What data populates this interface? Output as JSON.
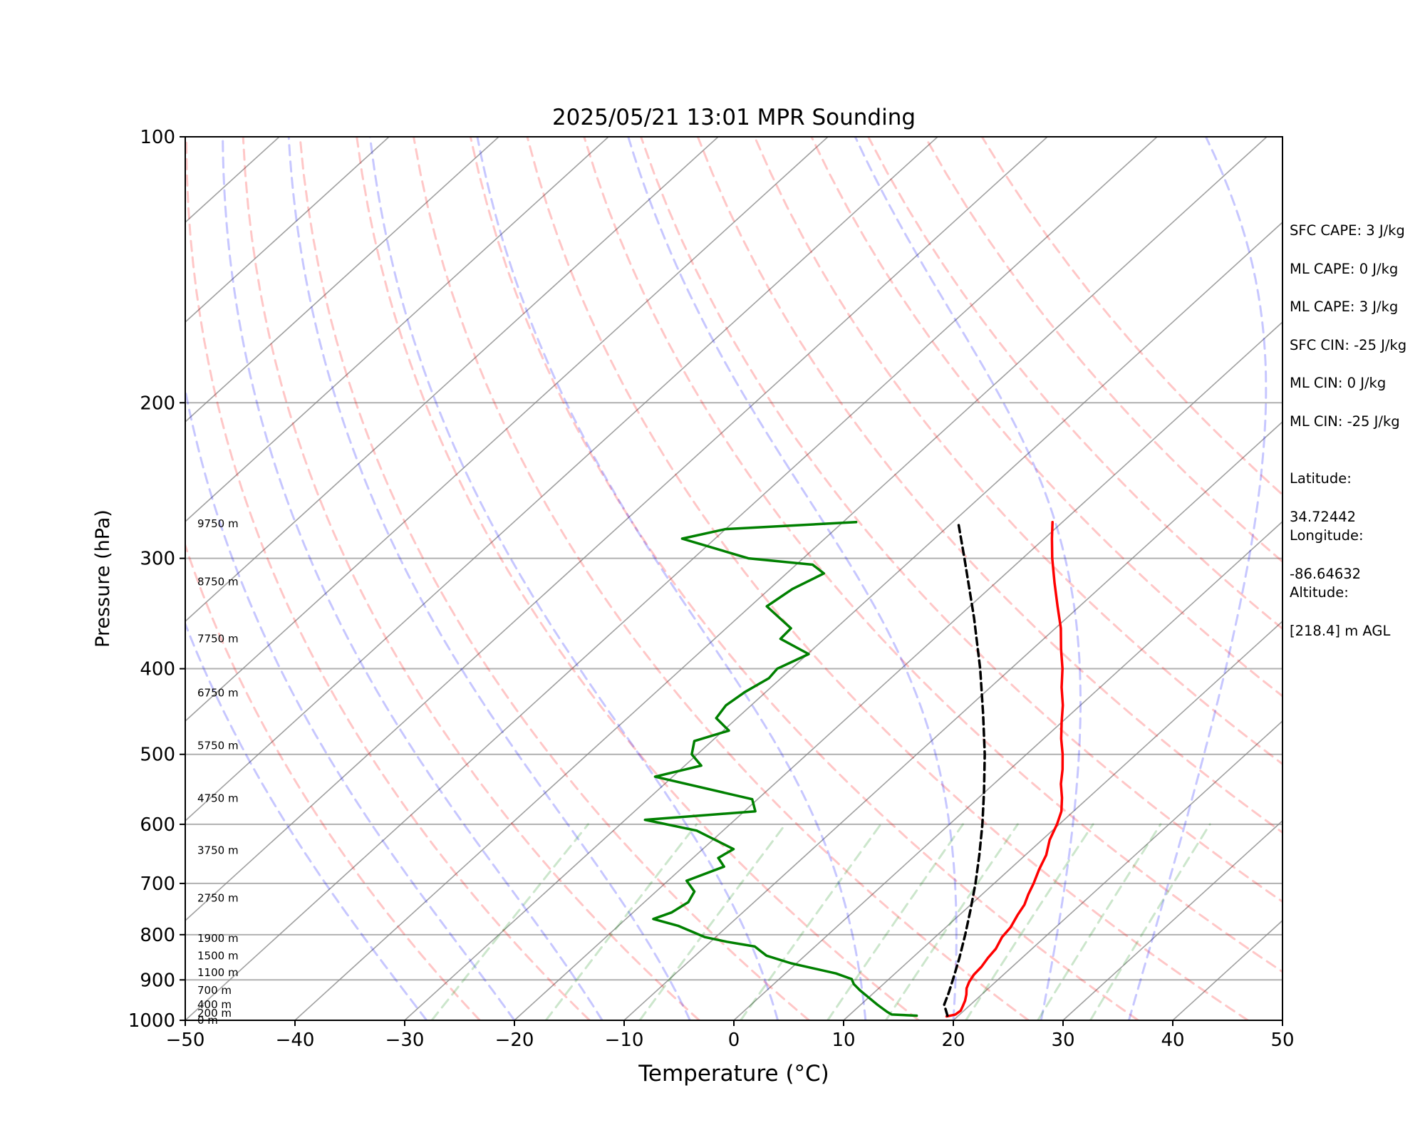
{
  "chart_data": {
    "type": "line",
    "subtype": "skew-t log-p",
    "title": "2025/05/21 13:01 MPR Sounding",
    "xlabel": "Temperature (°C)",
    "ylabel": "Pressure (hPa)",
    "xlim": [
      -50,
      50
    ],
    "ylim": [
      1000,
      100
    ],
    "y_scale": "log",
    "x_ticks": [
      -50,
      -40,
      -30,
      -20,
      -10,
      0,
      10,
      20,
      30,
      40,
      50
    ],
    "y_ticks": [
      100,
      200,
      300,
      400,
      500,
      600,
      700,
      800,
      900,
      1000
    ],
    "grid": "horizontal at pressure ticks",
    "height_labels": [
      {
        "p": 1000,
        "label": "0 m"
      },
      {
        "p": 982,
        "label": "200 m"
      },
      {
        "p": 960,
        "label": "400 m"
      },
      {
        "p": 925,
        "label": "700 m"
      },
      {
        "p": 883,
        "label": "1100 m"
      },
      {
        "p": 845,
        "label": "1500 m"
      },
      {
        "p": 808,
        "label": "1900 m"
      },
      {
        "p": 727,
        "label": "2750 m"
      },
      {
        "p": 642,
        "label": "3750 m"
      },
      {
        "p": 561,
        "label": "4750 m"
      },
      {
        "p": 489,
        "label": "5750 m"
      },
      {
        "p": 426,
        "label": "6750 m"
      },
      {
        "p": 370,
        "label": "7750 m"
      },
      {
        "p": 319,
        "label": "8750 m"
      },
      {
        "p": 274,
        "label": "9750 m"
      }
    ],
    "series": [
      {
        "color": "#ff0000",
        "points": [
          {
            "p": 990,
            "t": 19.0
          },
          {
            "p": 985,
            "t": 19.6
          },
          {
            "p": 975,
            "t": 19.7
          },
          {
            "p": 962,
            "t": 19.4
          },
          {
            "p": 950,
            "t": 19.1
          },
          {
            "p": 935,
            "t": 18.6
          },
          {
            "p": 920,
            "t": 18.0
          },
          {
            "p": 905,
            "t": 17.6
          },
          {
            "p": 888,
            "t": 17.3
          },
          {
            "p": 870,
            "t": 17.2
          },
          {
            "p": 850,
            "t": 16.9
          },
          {
            "p": 830,
            "t": 16.7
          },
          {
            "p": 805,
            "t": 16.1
          },
          {
            "p": 785,
            "t": 15.9
          },
          {
            "p": 760,
            "t": 15.3
          },
          {
            "p": 740,
            "t": 14.9
          },
          {
            "p": 720,
            "t": 14.2
          },
          {
            "p": 700,
            "t": 13.6
          },
          {
            "p": 675,
            "t": 12.7
          },
          {
            "p": 650,
            "t": 11.9
          },
          {
            "p": 625,
            "t": 10.7
          },
          {
            "p": 600,
            "t": 9.8
          },
          {
            "p": 580,
            "t": 8.9
          },
          {
            "p": 560,
            "t": 7.6
          },
          {
            "p": 540,
            "t": 6.1
          },
          {
            "p": 520,
            "t": 4.8
          },
          {
            "p": 500,
            "t": 3.3
          },
          {
            "p": 480,
            "t": 1.6
          },
          {
            "p": 460,
            "t": 0.0
          },
          {
            "p": 440,
            "t": -1.6
          },
          {
            "p": 420,
            "t": -3.5
          },
          {
            "p": 400,
            "t": -5.3
          },
          {
            "p": 380,
            "t": -7.4
          },
          {
            "p": 360,
            "t": -9.5
          },
          {
            "p": 340,
            "t": -12.0
          },
          {
            "p": 320,
            "t": -14.6
          },
          {
            "p": 300,
            "t": -17.3
          },
          {
            "p": 285,
            "t": -19.3
          },
          {
            "p": 273,
            "t": -20.9
          }
        ]
      },
      {
        "color": "#008000",
        "points": [
          {
            "p": 988,
            "t": 16.2
          },
          {
            "p": 985,
            "t": 13.8
          },
          {
            "p": 978,
            "t": 13.1
          },
          {
            "p": 960,
            "t": 11.5
          },
          {
            "p": 940,
            "t": 9.8
          },
          {
            "p": 925,
            "t": 8.5
          },
          {
            "p": 910,
            "t": 7.3
          },
          {
            "p": 898,
            "t": 6.6
          },
          {
            "p": 885,
            "t": 4.6
          },
          {
            "p": 862,
            "t": -0.5
          },
          {
            "p": 845,
            "t": -3.5
          },
          {
            "p": 835,
            "t": -4.5
          },
          {
            "p": 825,
            "t": -5.5
          },
          {
            "p": 815,
            "t": -8.5
          },
          {
            "p": 805,
            "t": -11.0
          },
          {
            "p": 795,
            "t": -12.5
          },
          {
            "p": 782,
            "t": -14.5
          },
          {
            "p": 768,
            "t": -17.5
          },
          {
            "p": 755,
            "t": -16.5
          },
          {
            "p": 735,
            "t": -16.0
          },
          {
            "p": 715,
            "t": -16.5
          },
          {
            "p": 695,
            "t": -18.3
          },
          {
            "p": 670,
            "t": -16.3
          },
          {
            "p": 655,
            "t": -17.7
          },
          {
            "p": 640,
            "t": -17.2
          },
          {
            "p": 610,
            "t": -22.4
          },
          {
            "p": 593,
            "t": -28.2
          },
          {
            "p": 580,
            "t": -19.0
          },
          {
            "p": 562,
            "t": -20.5
          },
          {
            "p": 530,
            "t": -31.6
          },
          {
            "p": 515,
            "t": -28.5
          },
          {
            "p": 500,
            "t": -30.5
          },
          {
            "p": 483,
            "t": -31.6
          },
          {
            "p": 470,
            "t": -29.5
          },
          {
            "p": 455,
            "t": -31.9
          },
          {
            "p": 440,
            "t": -32.3
          },
          {
            "p": 425,
            "t": -31.9
          },
          {
            "p": 410,
            "t": -31.1
          },
          {
            "p": 400,
            "t": -31.3
          },
          {
            "p": 385,
            "t": -29.9
          },
          {
            "p": 370,
            "t": -34.0
          },
          {
            "p": 360,
            "t": -34.1
          },
          {
            "p": 340,
            "t": -38.5
          },
          {
            "p": 325,
            "t": -37.9
          },
          {
            "p": 312,
            "t": -36.6
          },
          {
            "p": 305,
            "t": -38.5
          },
          {
            "p": 300,
            "t": -45.0
          },
          {
            "p": 285,
            "t": -53.0
          },
          {
            "p": 278,
            "t": -50.0
          },
          {
            "p": 273,
            "t": -38.8
          }
        ]
      },
      {
        "color": "#000000",
        "dashed": true,
        "points": [
          {
            "p": 988,
            "t": 19.0
          },
          {
            "p": 960,
            "t": 17.6
          },
          {
            "p": 930,
            "t": 16.8
          },
          {
            "p": 900,
            "t": 15.9
          },
          {
            "p": 850,
            "t": 14.3
          },
          {
            "p": 800,
            "t": 12.5
          },
          {
            "p": 750,
            "t": 10.5
          },
          {
            "p": 700,
            "t": 8.3
          },
          {
            "p": 650,
            "t": 5.8
          },
          {
            "p": 600,
            "t": 3.0
          },
          {
            "p": 550,
            "t": -0.2
          },
          {
            "p": 500,
            "t": -3.8
          },
          {
            "p": 450,
            "t": -8.0
          },
          {
            "p": 400,
            "t": -12.8
          },
          {
            "p": 350,
            "t": -18.5
          },
          {
            "p": 300,
            "t": -25.3
          },
          {
            "p": 273,
            "t": -29.5
          }
        ]
      }
    ],
    "reference_lines": {
      "dry_adiabats_theta_K": [
        250,
        260,
        270,
        280,
        290,
        300,
        310,
        320,
        330,
        340,
        350,
        360,
        370,
        380,
        390,
        400
      ],
      "dry_adiabat_color": "#ff0000",
      "moist_adiabats_start_C": [
        -28,
        -20,
        -12,
        -4,
        4,
        12,
        20,
        28,
        36
      ],
      "moist_adiabat_color": "#0000ff",
      "mixing_ratio_lines_gkg": [
        0.4,
        1,
        2,
        4,
        7,
        10,
        16,
        24,
        32
      ],
      "mixing_ratio_color": "#008000",
      "isotherm_color": "#888888"
    }
  },
  "sidebar": {
    "sfc_cape": "SFC CAPE: 3 J/kg",
    "ml_cape_1": "ML CAPE: 0 J/kg",
    "ml_cape_2": "ML CAPE: 3 J/kg",
    "sfc_cin": "SFC CIN: -25 J/kg",
    "ml_cin_1": "ML CIN: 0 J/kg",
    "ml_cin_2": "ML CIN: -25 J/kg",
    "latitude_label": "Latitude:",
    "latitude_value": "34.72442",
    "longitude_label": "Longitude:",
    "longitude_value": "-86.64632",
    "altitude_label": "Altitude:",
    "altitude_value": "[218.4] m AGL"
  }
}
